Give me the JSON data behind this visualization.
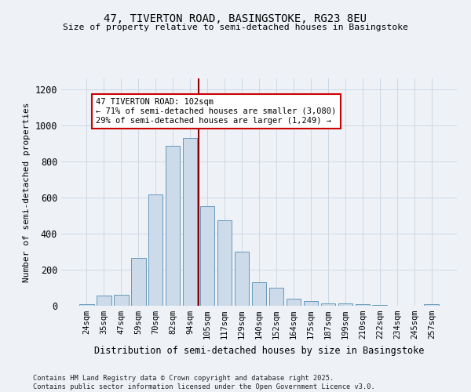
{
  "title1": "47, TIVERTON ROAD, BASINGSTOKE, RG23 8EU",
  "title2": "Size of property relative to semi-detached houses in Basingstoke",
  "xlabel": "Distribution of semi-detached houses by size in Basingstoke",
  "ylabel": "Number of semi-detached properties",
  "categories": [
    "24sqm",
    "35sqm",
    "47sqm",
    "59sqm",
    "70sqm",
    "82sqm",
    "94sqm",
    "105sqm",
    "117sqm",
    "129sqm",
    "140sqm",
    "152sqm",
    "164sqm",
    "175sqm",
    "187sqm",
    "199sqm",
    "210sqm",
    "222sqm",
    "234sqm",
    "245sqm",
    "257sqm"
  ],
  "values": [
    10,
    55,
    60,
    265,
    615,
    885,
    930,
    550,
    475,
    300,
    130,
    100,
    40,
    25,
    15,
    15,
    10,
    5,
    2,
    1,
    10
  ],
  "bar_color": "#cddaea",
  "bar_edge_color": "#6699bb",
  "vline_x_index": 6,
  "vline_color": "#8b0000",
  "annotation_title": "47 TIVERTON ROAD: 102sqm",
  "annotation_line1": "← 71% of semi-detached houses are smaller (3,080)",
  "annotation_line2": "29% of semi-detached houses are larger (1,249) →",
  "annotation_box_color": "#ffffff",
  "annotation_box_edge": "#cc0000",
  "ylim": [
    0,
    1260
  ],
  "yticks": [
    0,
    200,
    400,
    600,
    800,
    1000,
    1200
  ],
  "footer1": "Contains HM Land Registry data © Crown copyright and database right 2025.",
  "footer2": "Contains public sector information licensed under the Open Government Licence v3.0.",
  "bg_color": "#eef2f7",
  "grid_color": "#c8d4e0",
  "fig_width": 6.0,
  "fig_height": 5.0,
  "dpi": 100
}
